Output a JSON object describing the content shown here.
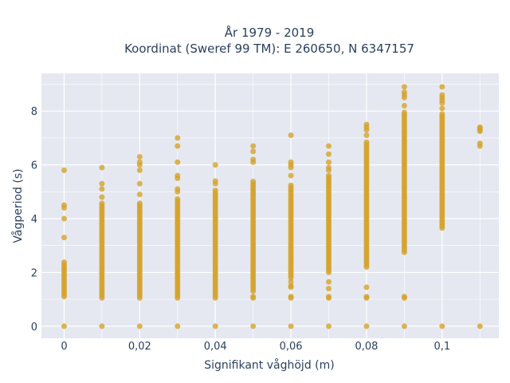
{
  "chart_data": {
    "type": "scatter",
    "title": "År 1979 - 2019",
    "subtitle": "Koordinat (Sweref 99 TM): E 260650, N 6347157",
    "xlabel": "Signifikant våghöjd (m)",
    "ylabel": "Vågperiod (s)",
    "xlim": [
      -0.006,
      0.115
    ],
    "ylim": [
      -0.45,
      9.4
    ],
    "x_ticks": [
      0,
      0.02,
      0.04,
      0.06,
      0.08,
      0.1
    ],
    "x_tick_labels": [
      "0",
      "0,02",
      "0,04",
      "0,06",
      "0,08",
      "0,1"
    ],
    "y_ticks": [
      0,
      2,
      4,
      6,
      8
    ],
    "y_tick_labels": [
      "0",
      "2",
      "4",
      "6",
      "8"
    ],
    "grid": true,
    "colors": {
      "marker": "#d4a32a",
      "plot_bg": "#e5e8f1",
      "grid": "#ffffff",
      "text": "#2a3f5f"
    },
    "series": [
      {
        "columns": [
          {
            "x": 0.0,
            "ranges": [
              [
                1.1,
                2.45
              ]
            ],
            "points": [
              0,
              3.3,
              4.0,
              4.4,
              4.5,
              5.8
            ]
          },
          {
            "x": 0.01,
            "ranges": [
              [
                1.05,
                4.6
              ]
            ],
            "points": [
              0,
              4.8,
              5.1,
              5.3,
              5.9
            ]
          },
          {
            "x": 0.02,
            "ranges": [
              [
                1.05,
                4.6
              ]
            ],
            "points": [
              0,
              4.9,
              5.3,
              5.8,
              6.0,
              6.1,
              6.3
            ]
          },
          {
            "x": 0.03,
            "ranges": [
              [
                1.05,
                4.8
              ]
            ],
            "points": [
              0,
              5.0,
              5.1,
              5.5,
              5.6,
              6.1,
              6.7,
              7.0
            ]
          },
          {
            "x": 0.04,
            "ranges": [
              [
                1.05,
                5.1
              ]
            ],
            "points": [
              0,
              5.3,
              5.4,
              6.0
            ]
          },
          {
            "x": 0.05,
            "ranges": [
              [
                1.3,
                5.4
              ]
            ],
            "points": [
              0,
              1.05,
              1.1,
              6.1,
              6.2,
              6.5,
              6.7
            ]
          },
          {
            "x": 0.06,
            "ranges": [
              [
                1.8,
                5.3
              ]
            ],
            "points": [
              0,
              1.05,
              1.1,
              1.45,
              1.5,
              1.65,
              5.6,
              5.9,
              6.0,
              6.1,
              7.1
            ]
          },
          {
            "x": 0.07,
            "ranges": [
              [
                2.0,
                5.6
              ]
            ],
            "points": [
              0,
              1.05,
              1.1,
              1.4,
              1.65,
              5.8,
              5.9,
              6.1,
              6.4,
              6.7
            ]
          },
          {
            "x": 0.08,
            "ranges": [
              [
                2.2,
                6.9
              ]
            ],
            "points": [
              0,
              1.05,
              1.1,
              1.45,
              7.1,
              7.3,
              7.4,
              7.5
            ]
          },
          {
            "x": 0.09,
            "ranges": [
              [
                2.75,
                8.0
              ]
            ],
            "points": [
              0,
              1.05,
              1.1,
              8.2,
              8.5,
              8.6,
              8.7,
              8.9
            ]
          },
          {
            "x": 0.1,
            "ranges": [
              [
                3.65,
                7.9
              ]
            ],
            "points": [
              0,
              8.1,
              8.3,
              8.4,
              8.5,
              8.6,
              8.9
            ]
          },
          {
            "x": 0.11,
            "ranges": [],
            "points": [
              0,
              6.7,
              6.8,
              7.25,
              7.3,
              7.35,
              7.4
            ]
          }
        ]
      }
    ]
  }
}
